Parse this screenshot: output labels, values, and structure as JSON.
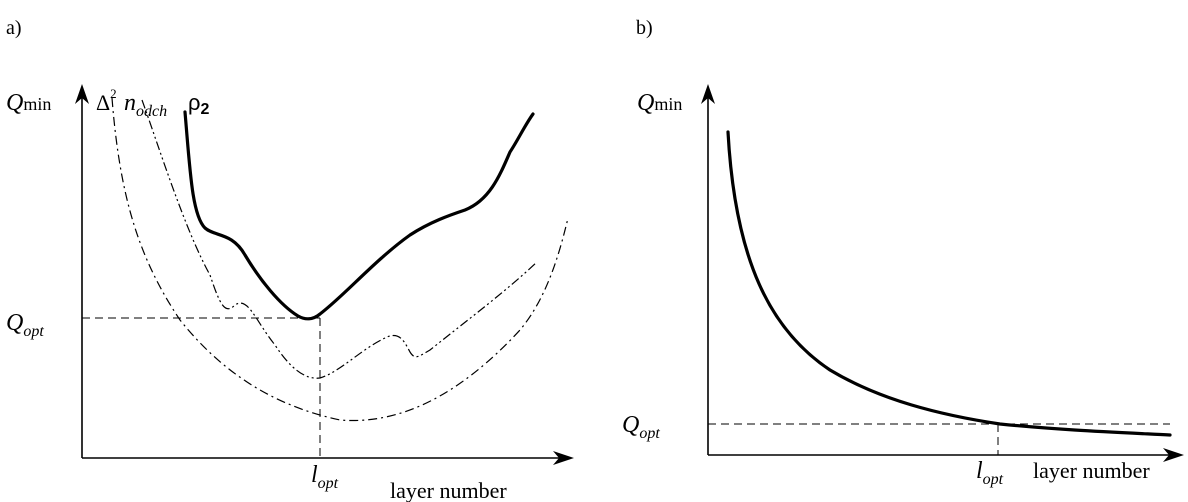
{
  "panel_a": {
    "label": "a)",
    "y_axis_label": {
      "main": "Q",
      "sub": "min"
    },
    "x_axis_label": "layer number",
    "q_opt_label": {
      "main": "Q",
      "sub": "opt"
    },
    "l_opt_label": {
      "main": "l",
      "sub": "opt"
    },
    "curve_labels": {
      "delta": {
        "main": "Δ",
        "sup": "2"
      },
      "n": {
        "main": "n",
        "sub": "odch"
      },
      "rho": {
        "main": "ρ",
        "sub": "2"
      }
    }
  },
  "panel_b": {
    "label": "b)",
    "y_axis_label": {
      "main": "Q",
      "sub": "min"
    },
    "x_axis_label": "layer number",
    "q_opt_label": {
      "main": "Q",
      "sub": "opt"
    },
    "l_opt_label": {
      "main": "l",
      "sub": "opt"
    }
  }
}
